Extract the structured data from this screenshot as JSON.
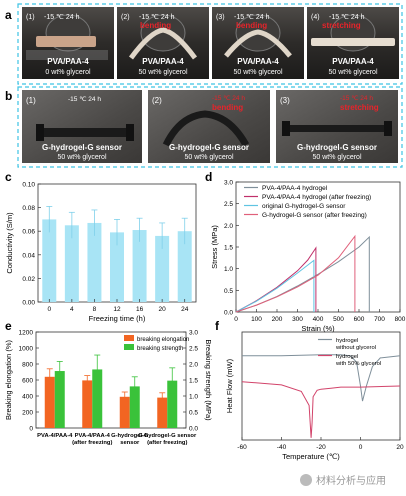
{
  "panel_a": {
    "letter": "a",
    "photos": [
      {
        "index": "(1)",
        "condition": "-15 ℃  24 h",
        "action": "",
        "label": "PVA/PAA-4",
        "sub": "0 wt% glycerol"
      },
      {
        "index": "(2)",
        "condition": "-15 ℃  24 h",
        "action": "bending",
        "label": "PVA/PAA-4",
        "sub": "50 wt% glycerol"
      },
      {
        "index": "(3)",
        "condition": "-15 ℃  24 h",
        "action": "bending",
        "label": "PVA/PAA-4",
        "sub": "50 wt% glycerol"
      },
      {
        "index": "(4)",
        "condition": "-15 ℃  24 h",
        "action": "stretching",
        "label": "PVA/PAA-4",
        "sub": "50 wt% glycerol"
      }
    ]
  },
  "panel_b": {
    "letter": "b",
    "photos": [
      {
        "index": "(1)",
        "condition": "-15 ℃  24 h",
        "action": "",
        "label": "G-hydrogel-G sensor",
        "sub": "50 wt% glycerol"
      },
      {
        "index": "(2)",
        "condition": "-15 ℃  24 h",
        "action": "bending",
        "label": "G-hydrogel-G sensor",
        "sub": "50 wt% glycerol"
      },
      {
        "index": "(3)",
        "condition": "-15 ℃  24 h",
        "action": "stretching",
        "label": "G-hydrogel-G sensor",
        "sub": "50 wt% glycerol"
      }
    ]
  },
  "panel_c": {
    "letter": "c"
  },
  "panel_d": {
    "letter": "d"
  },
  "panel_e": {
    "letter": "e"
  },
  "panel_f": {
    "letter": "f"
  },
  "chart_data": [
    {
      "panel": "c",
      "type": "bar",
      "xlabel": "Freezing time (h)",
      "ylabel": "Conductivity (S/m)",
      "categories": [
        "0",
        "4",
        "8",
        "12",
        "16",
        "20",
        "24"
      ],
      "values": [
        0.07,
        0.065,
        0.067,
        0.059,
        0.061,
        0.056,
        0.06
      ],
      "errors": [
        0.011,
        0.011,
        0.011,
        0.011,
        0.01,
        0.011,
        0.011
      ],
      "ylim": [
        0,
        0.1
      ],
      "yticks": [
        "0.00",
        "0.02",
        "0.04",
        "0.06",
        "0.08",
        "0.10"
      ],
      "color": "#a8e4f5"
    },
    {
      "panel": "d",
      "type": "line",
      "xlabel": "Strain (%)",
      "ylabel": "Stress (MPa)",
      "xlim": [
        0,
        800
      ],
      "ylim": [
        0,
        3.0
      ],
      "xticks": [
        0,
        100,
        200,
        300,
        400,
        500,
        600,
        700,
        800
      ],
      "yticks": [
        "0.0",
        "0.5",
        "1.0",
        "1.5",
        "2.0",
        "2.5",
        "3.0"
      ],
      "legend_position": "top-right",
      "series": [
        {
          "name": "PVA-4/PAA-4 hydrogel",
          "color": "#7f8f9a",
          "x": [
            0,
            100,
            200,
            300,
            400,
            500,
            600,
            650,
            650
          ],
          "y": [
            0,
            0.16,
            0.36,
            0.6,
            0.87,
            1.16,
            1.5,
            1.73,
            0
          ]
        },
        {
          "name": "PVA-4/PAA-4 hydrogel (after freezing)",
          "color": "#c0306a",
          "x": [
            0,
            100,
            200,
            300,
            350,
            390,
            390
          ],
          "y": [
            0,
            0.26,
            0.57,
            0.95,
            1.2,
            1.48,
            0
          ]
        },
        {
          "name": "original G-hydrogel-G sensor",
          "color": "#5fc4e2",
          "x": [
            0,
            100,
            200,
            300,
            380,
            380
          ],
          "y": [
            0,
            0.25,
            0.55,
            0.9,
            1.19,
            0
          ]
        },
        {
          "name": "G-hydrogel-G sensor (after freezing)",
          "color": "#e0607a",
          "x": [
            0,
            100,
            200,
            300,
            400,
            500,
            580,
            580
          ],
          "y": [
            0,
            0.16,
            0.35,
            0.58,
            0.85,
            1.25,
            1.75,
            0
          ]
        }
      ]
    },
    {
      "panel": "e",
      "type": "bar",
      "ylabel": "Breaking elongation (%)",
      "y2label": "Breaking strength (MPa)",
      "categories": [
        "PVA-4/PAA-4",
        "PVA-4/PAA-4\n(after freezing)",
        "G-hydrogel-G\nsensor",
        "G-hydrogel-G sensor\n(after freezing)"
      ],
      "ylim": [
        0,
        1200
      ],
      "y2lim": [
        0,
        3.0
      ],
      "yticks": [
        0,
        200,
        400,
        600,
        800,
        1000,
        1200
      ],
      "y2ticks": [
        "0.0",
        "0.5",
        "1.0",
        "1.5",
        "2.0",
        "2.5",
        "3.0"
      ],
      "legend_position": "top-right",
      "series": [
        {
          "name": "breaking elongation",
          "color": "#f26522",
          "axis": "left",
          "values": [
            640,
            595,
            390,
            380
          ],
          "errors": [
            100,
            60,
            60,
            60
          ]
        },
        {
          "name": "breaking strength",
          "color": "#3ac23a",
          "axis": "right",
          "values": [
            1.78,
            1.83,
            1.3,
            1.48
          ],
          "errors": [
            0.3,
            0.45,
            0.3,
            0.4
          ]
        }
      ]
    },
    {
      "panel": "f",
      "type": "line",
      "xlabel": "Temperature (℃)",
      "ylabel": "Heat Flow (mW)",
      "xlim": [
        -60,
        20
      ],
      "xticks": [
        -60,
        -40,
        -20,
        0,
        20
      ],
      "legend_position": "top-right",
      "series": [
        {
          "name": "hydrogel\nwithout glycerol",
          "color": "#7f8f9a",
          "x": [
            -60,
            -40,
            -20,
            -10,
            -5,
            -2,
            0,
            1,
            3,
            6,
            10,
            20
          ],
          "y": [
            0.78,
            0.78,
            0.79,
            0.79,
            0.78,
            0.72,
            0.5,
            0.36,
            0.5,
            0.68,
            0.76,
            0.78
          ]
        },
        {
          "name": "hydrogel\nwith 50% glycerol",
          "color": "#d2436a",
          "x": [
            -60,
            -40,
            -30,
            -26,
            -25,
            -24.5,
            -24,
            -22,
            -20,
            -15,
            -10,
            0,
            20
          ],
          "y": [
            0.54,
            0.51,
            0.45,
            0.32,
            0.02,
            0.16,
            0.4,
            0.46,
            0.47,
            0.48,
            0.49,
            0.49,
            0.5
          ]
        }
      ]
    }
  ],
  "watermark": "材料分析与应用"
}
